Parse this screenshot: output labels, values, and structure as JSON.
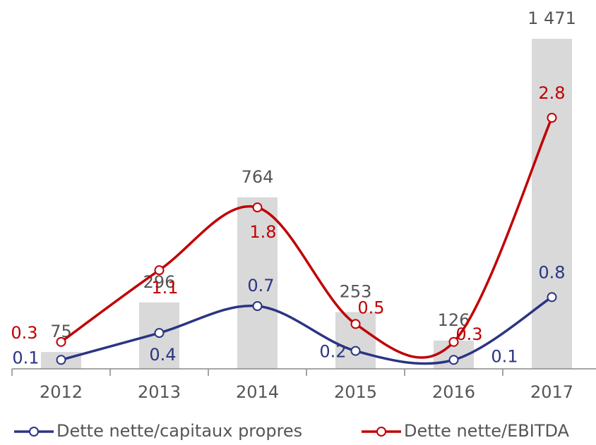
{
  "chart_data": {
    "type": "bar-line",
    "categories": [
      "2012",
      "2013",
      "2014",
      "2015",
      "2016",
      "2017"
    ],
    "values": [
      75,
      296,
      764,
      253,
      126,
      1471
    ],
    "value_labels": [
      "75",
      "296",
      "764",
      "253",
      "126",
      "1 471"
    ],
    "color": "#d9d9d9",
    "series": [
      {
        "name": "Dette nette/capitaux propres",
        "color": "#2b3483",
        "values": [
          0.1,
          0.4,
          0.7,
          0.2,
          0.1,
          0.8
        ]
      },
      {
        "name": "Dette nette/EBITDA",
        "color": "#c00000",
        "values": [
          0.3,
          1.1,
          1.8,
          0.5,
          0.3,
          2.8
        ]
      }
    ]
  }
}
